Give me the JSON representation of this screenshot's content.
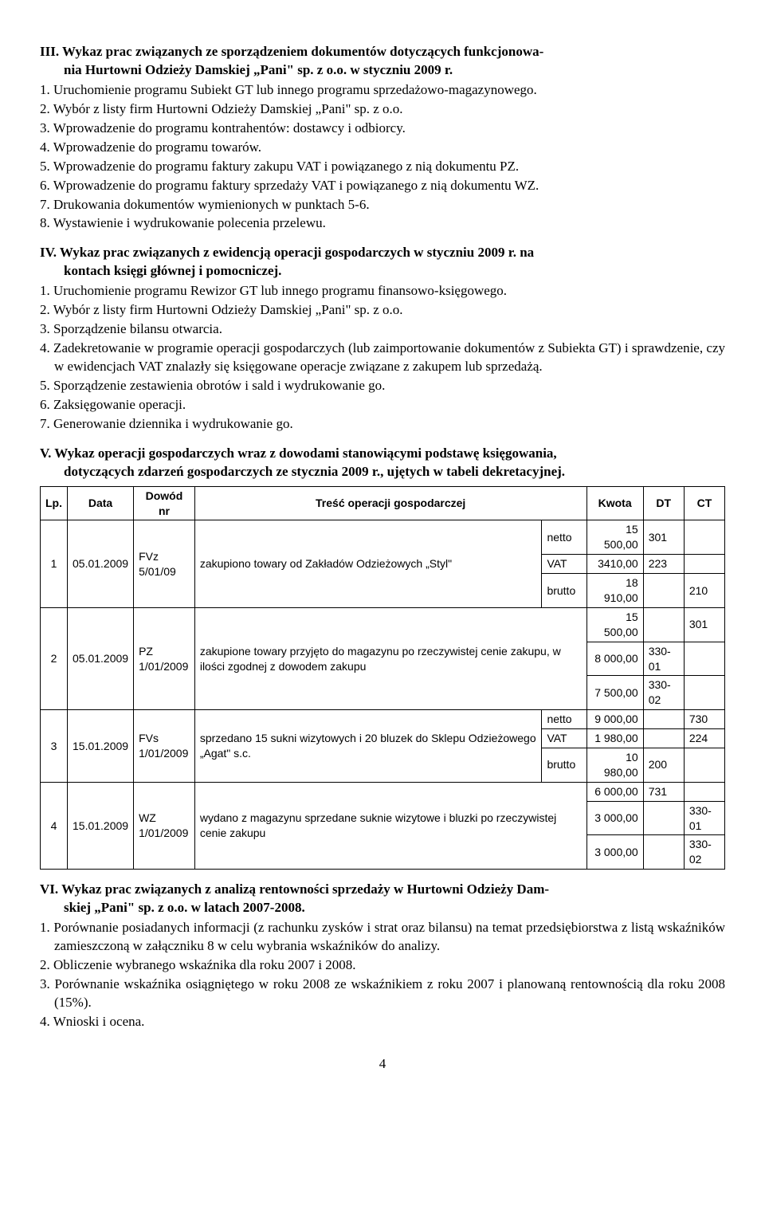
{
  "section3": {
    "heading_line1": "III. Wykaz prac związanych ze sporządzeniem dokumentów dotyczących funkcjonowa-",
    "heading_line2": "nia Hurtowni Odzieży Damskiej „Pani\" sp. z o.o. w styczniu 2009 r.",
    "items": [
      "1. Uruchomienie programu Subiekt GT lub innego programu sprzedażowo-magazynowego.",
      "2. Wybór z listy firm Hurtowni Odzieży Damskiej „Pani\" sp. z o.o.",
      "3. Wprowadzenie do programu kontrahentów: dostawcy i odbiorcy.",
      "4. Wprowadzenie do programu towarów.",
      "5. Wprowadzenie do programu faktury zakupu VAT i powiązanego z nią dokumentu PZ.",
      "6. Wprowadzenie do programu faktury sprzedaży VAT i powiązanego z nią dokumentu WZ.",
      "7. Drukowania dokumentów wymienionych w punktach 5-6.",
      "8. Wystawienie i wydrukowanie polecenia przelewu."
    ]
  },
  "section4": {
    "heading_line1": "IV. Wykaz prac związanych z ewidencją operacji gospodarczych w styczniu 2009 r. na",
    "heading_line2": "kontach księgi głównej i pomocniczej.",
    "items": [
      "1. Uruchomienie programu Rewizor GT lub innego programu finansowo-księgowego.",
      "2. Wybór z listy firm Hurtowni Odzieży Damskiej „Pani\" sp. z o.o.",
      "3. Sporządzenie bilansu otwarcia.",
      "4. Zadekretowanie w programie operacji gospodarczych (lub zaimportowanie dokumentów z Subiekta GT) i sprawdzenie, czy w ewidencjach VAT znalazły się księgowane operacje związane z zakupem lub sprzedażą.",
      "5. Sporządzenie zestawienia obrotów i sald i wydrukowanie go.",
      "6. Zaksięgowanie operacji.",
      "7. Generowanie dziennika i wydrukowanie go."
    ]
  },
  "section5": {
    "heading_line1": "V. Wykaz operacji gospodarczych wraz z dowodami stanowiącymi podstawę księgowania,",
    "heading_line2": "dotyczących zdarzeń gospodarczych ze stycznia 2009 r., ujętych w tabeli dekretacyjnej.",
    "table": {
      "headers": [
        "Lp.",
        "Data",
        "Dowód nr",
        "Treść operacji gospodarczej",
        "Kwota",
        "DT",
        "CT"
      ],
      "rows": [
        {
          "lp": "1",
          "data": "05.01.2009",
          "dowod": "FVz\n5/01/09",
          "tresc": "zakupiono towary od Zakładów Odzieżowych „Styl\"",
          "lines": [
            {
              "label": "netto",
              "kwota": "15 500,00",
              "dt": "301",
              "ct": ""
            },
            {
              "label": "VAT",
              "kwota": "3410,00",
              "dt": "223",
              "ct": ""
            },
            {
              "label": "brutto",
              "kwota": "18 910,00",
              "dt": "",
              "ct": "210"
            }
          ]
        },
        {
          "lp": "2",
          "data": "05.01.2009",
          "dowod": "PZ\n1/01/2009",
          "tresc": "zakupione towary przyjęto do magazynu po rzeczywistej cenie zakupu, w ilości zgodnej z dowodem zakupu",
          "lines": [
            {
              "label": "",
              "kwota": "15 500,00",
              "dt": "",
              "ct": "301"
            },
            {
              "label": "",
              "kwota": "8 000,00",
              "dt": "330-01",
              "ct": ""
            },
            {
              "label": "",
              "kwota": "7 500,00",
              "dt": "330-02",
              "ct": ""
            }
          ]
        },
        {
          "lp": "3",
          "data": "15.01.2009",
          "dowod": "FVs\n1/01/2009",
          "tresc": "sprzedano 15 sukni wizytowych i 20 bluzek do Sklepu Odzieżowego „Agat\" s.c.",
          "lines": [
            {
              "label": "netto",
              "kwota": "9 000,00",
              "dt": "",
              "ct": "730"
            },
            {
              "label": "VAT",
              "kwota": "1 980,00",
              "dt": "",
              "ct": "224"
            },
            {
              "label": "brutto",
              "kwota": "10 980,00",
              "dt": "200",
              "ct": ""
            }
          ]
        },
        {
          "lp": "4",
          "data": "15.01.2009",
          "dowod": "WZ\n1/01/2009",
          "tresc": "wydano z magazynu sprzedane suknie wizytowe i bluzki po rzeczywistej cenie zakupu",
          "lines": [
            {
              "label": "",
              "kwota": "6 000,00",
              "dt": "731",
              "ct": ""
            },
            {
              "label": "",
              "kwota": "3 000,00",
              "dt": "",
              "ct": "330-01"
            },
            {
              "label": "",
              "kwota": "3 000,00",
              "dt": "",
              "ct": "330-02"
            }
          ]
        }
      ]
    }
  },
  "section6": {
    "heading_line1": "VI. Wykaz prac związanych z analizą rentowności sprzedaży w Hurtowni Odzieży Dam-",
    "heading_line2": "skiej „Pani\" sp. z o.o. w latach 2007-2008.",
    "items": [
      "1. Porównanie posiadanych informacji (z rachunku zysków i strat oraz bilansu) na temat przedsiębiorstwa z listą wskaźników zamieszczoną w załączniku 8 w celu wybrania wskaźników do analizy.",
      "2. Obliczenie wybranego wskaźnika dla roku 2007 i 2008.",
      "3. Porównanie wskaźnika osiągniętego w roku 2008 ze wskaźnikiem z roku 2007 i planowaną rentownością dla roku 2008 (15%).",
      "4. Wnioski i ocena."
    ]
  },
  "page_number": "4"
}
